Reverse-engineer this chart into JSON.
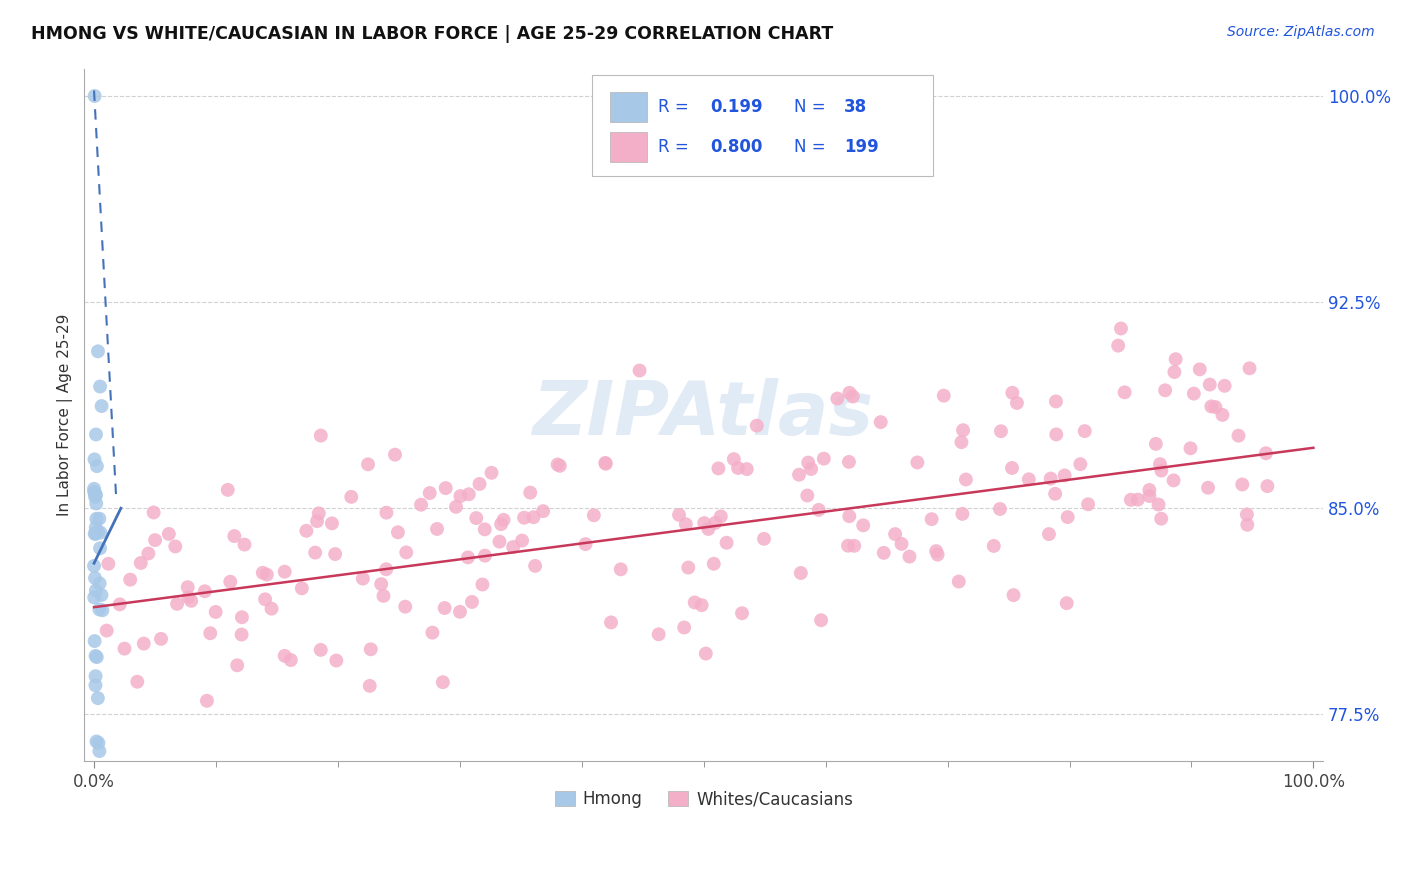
{
  "title": "HMONG VS WHITE/CAUCASIAN IN LABOR FORCE | AGE 25-29 CORRELATION CHART",
  "source": "Source: ZipAtlas.com",
  "ylabel": "In Labor Force | Age 25-29",
  "hmong_R": 0.199,
  "hmong_N": 38,
  "white_R": 0.8,
  "white_N": 199,
  "hmong_color": "#a8c8e8",
  "hmong_edge_color": "#a8c8e8",
  "hmong_line_color": "#4472b8",
  "white_color": "#f4afc8",
  "white_edge_color": "#f4afc8",
  "white_line_color": "#c8385a",
  "legend_text_color": "#2255dd",
  "tick_color": "#2255dd",
  "background_color": "#ffffff",
  "grid_color": "#cccccc",
  "watermark_color": "#c5d8ee",
  "xlim": [
    -0.008,
    1.008
  ],
  "ylim": [
    0.758,
    1.01
  ],
  "y_ticks": [
    0.775,
    0.85,
    0.925,
    1.0
  ],
  "y_tick_labels": [
    "77.5%",
    "85.0%",
    "92.5%",
    "100.0%"
  ],
  "x_ticks": [
    0.0,
    1.0
  ],
  "x_tick_labels": [
    "0.0%",
    "100.0%"
  ],
  "dot_size": 100,
  "white_line_start_x": 0.0,
  "white_line_end_x": 1.0,
  "white_line_start_y": 0.814,
  "white_line_end_y": 0.872
}
